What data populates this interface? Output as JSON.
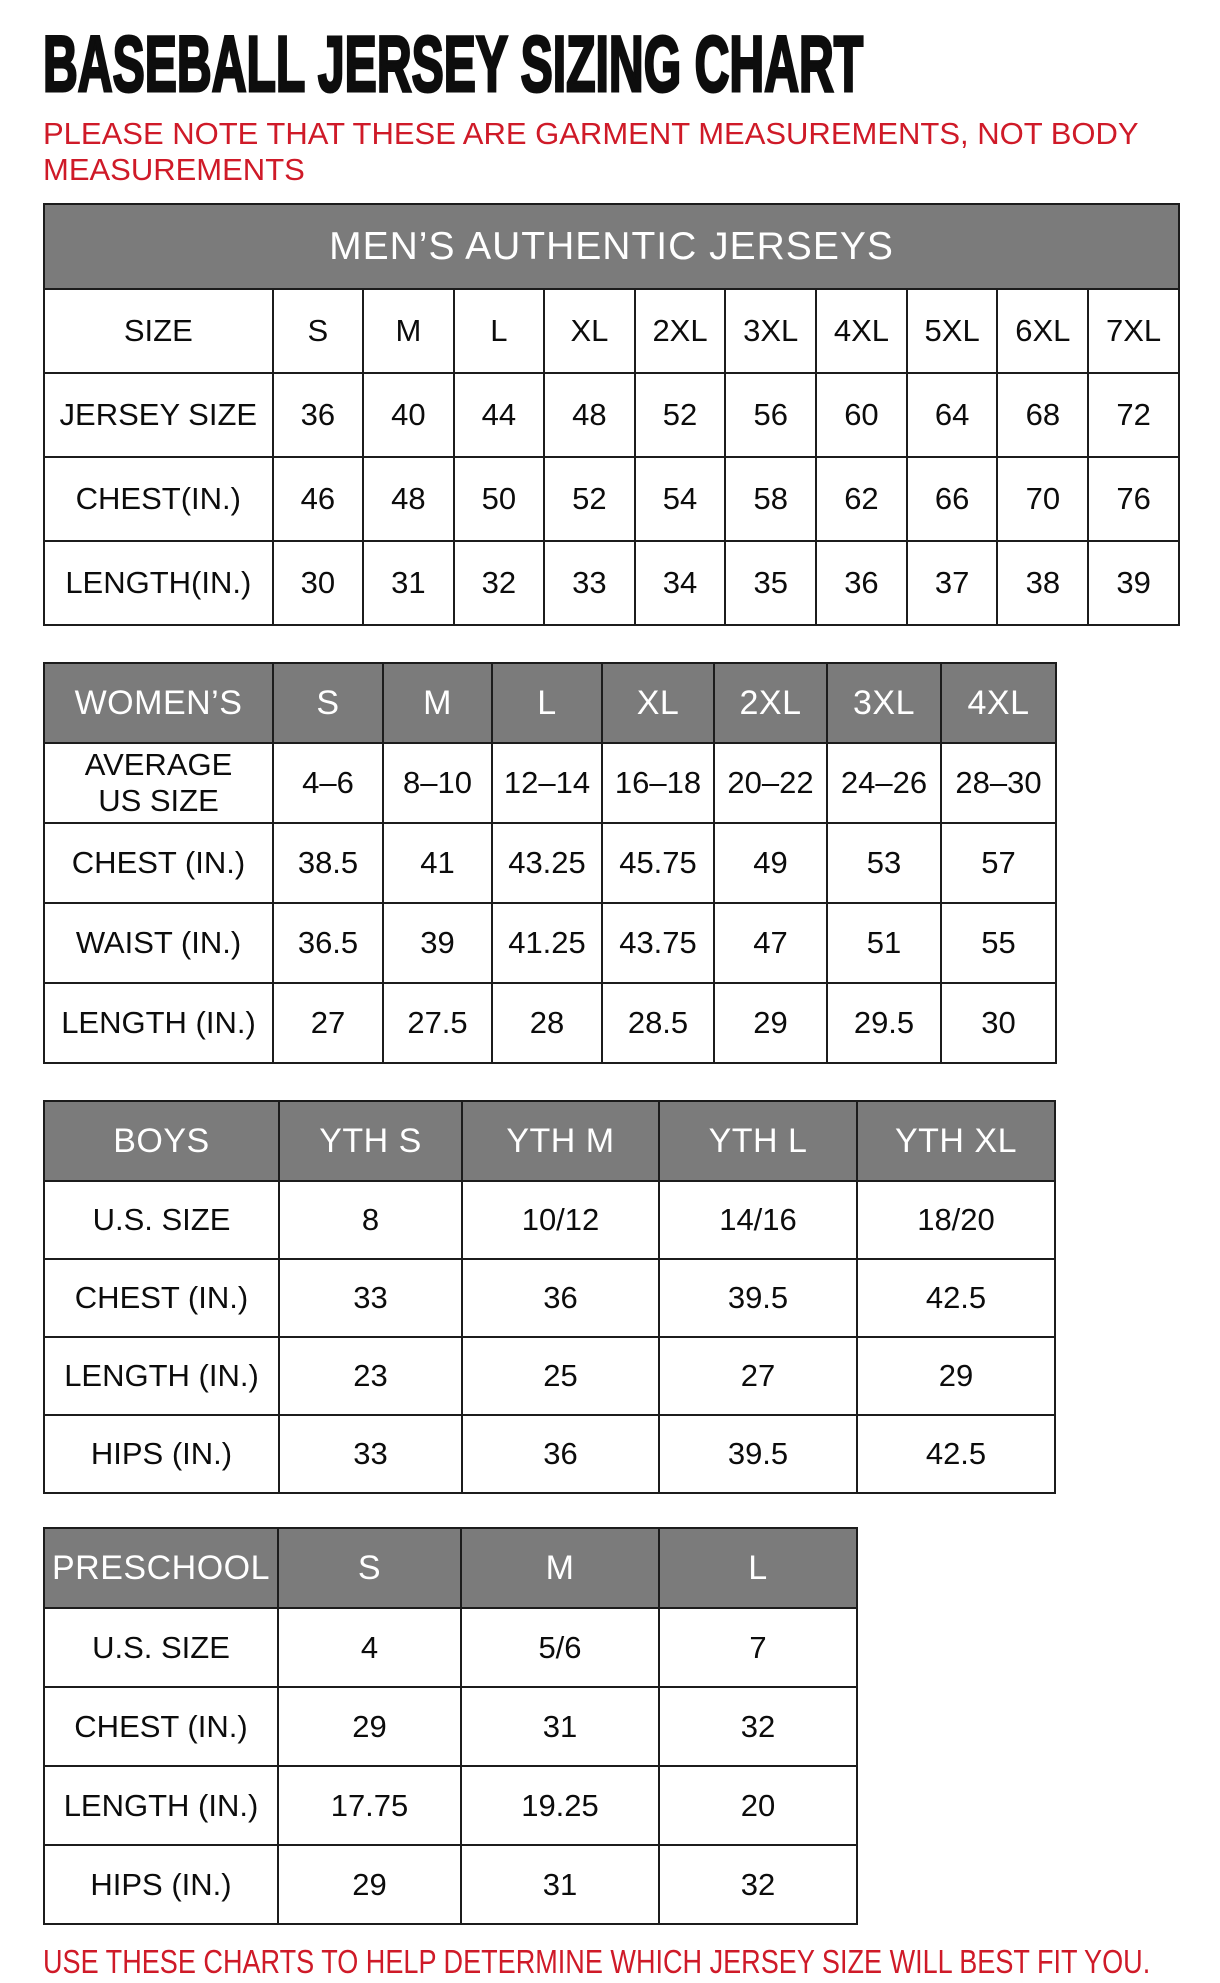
{
  "page": {
    "title": "BASEBALL JERSEY SIZING CHART",
    "note": "PLEASE NOTE THAT THESE ARE GARMENT MEASUREMENTS, NOT BODY MEASUREMENTS",
    "footer": "USE THESE CHARTS TO HELP DETERMINE WHICH JERSEY SIZE WILL BEST FIT YOU.",
    "colors": {
      "accent_red": "#cf1a28",
      "header_gray": "#7b7b7b",
      "header_text": "#ffffff",
      "grid_border": "#1c1c1c"
    }
  },
  "tables": [
    {
      "id": "mens",
      "banner": "MEN’S AUTHENTIC JERSEYS",
      "header": null,
      "rows": [
        [
          "SIZE",
          "S",
          "M",
          "L",
          "XL",
          "2XL",
          "3XL",
          "4XL",
          "5XL",
          "6XL",
          "7XL"
        ],
        [
          "JERSEY SIZE",
          "36",
          "40",
          "44",
          "48",
          "52",
          "56",
          "60",
          "64",
          "68",
          "72"
        ],
        [
          "CHEST(IN.)",
          "46",
          "48",
          "50",
          "52",
          "54",
          "58",
          "62",
          "66",
          "70",
          "76"
        ],
        [
          "LENGTH(IN.)",
          "30",
          "31",
          "32",
          "33",
          "34",
          "35",
          "36",
          "37",
          "38",
          "39"
        ]
      ]
    },
    {
      "id": "womens",
      "banner": null,
      "header": [
        "WOMEN’S",
        "S",
        "M",
        "L",
        "XL",
        "2XL",
        "3XL",
        "4XL"
      ],
      "rows": [
        [
          "AVERAGE\nUS SIZE",
          "4–6",
          "8–10",
          "12–14",
          "16–18",
          "20–22",
          "24–26",
          "28–30"
        ],
        [
          "CHEST (IN.)",
          "38.5",
          "41",
          "43.25",
          "45.75",
          "49",
          "53",
          "57"
        ],
        [
          "WAIST (IN.)",
          "36.5",
          "39",
          "41.25",
          "43.75",
          "47",
          "51",
          "55"
        ],
        [
          "LENGTH (IN.)",
          "27",
          "27.5",
          "28",
          "28.5",
          "29",
          "29.5",
          "30"
        ]
      ]
    },
    {
      "id": "boys",
      "banner": null,
      "header": [
        "BOYS",
        "YTH S",
        "YTH M",
        "YTH L",
        "YTH XL"
      ],
      "rows": [
        [
          "U.S. SIZE",
          "8",
          "10/12",
          "14/16",
          "18/20"
        ],
        [
          "CHEST (IN.)",
          "33",
          "36",
          "39.5",
          "42.5"
        ],
        [
          "LENGTH (IN.)",
          "23",
          "25",
          "27",
          "29"
        ],
        [
          "HIPS (IN.)",
          "33",
          "36",
          "39.5",
          "42.5"
        ]
      ]
    },
    {
      "id": "preschool",
      "banner": null,
      "header": [
        "PRESCHOOL",
        "S",
        "M",
        "L"
      ],
      "rows": [
        [
          "U.S. SIZE",
          "4",
          "5/6",
          "7"
        ],
        [
          "CHEST (IN.)",
          "29",
          "31",
          "32"
        ],
        [
          "LENGTH (IN.)",
          "17.75",
          "19.25",
          "20"
        ],
        [
          "HIPS (IN.)",
          "29",
          "31",
          "32"
        ]
      ]
    }
  ]
}
